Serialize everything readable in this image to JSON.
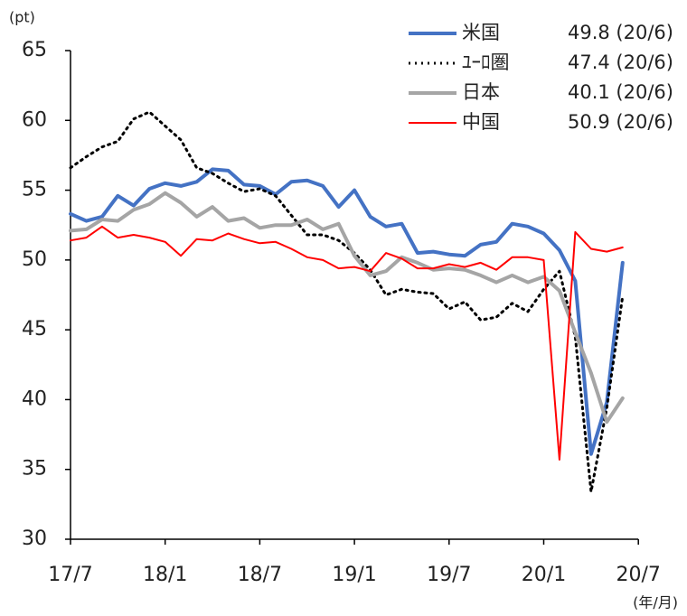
{
  "chart_data": {
    "type": "line",
    "y_label": "(pt)",
    "x_label": "(年/月)",
    "categories": [
      "17/7",
      null,
      null,
      null,
      null,
      null,
      "18/1",
      null,
      null,
      null,
      null,
      null,
      "18/7",
      null,
      null,
      null,
      null,
      null,
      "19/1",
      null,
      null,
      null,
      null,
      null,
      "19/7",
      null,
      null,
      null,
      null,
      null,
      "20/1",
      null,
      null,
      null,
      null,
      null,
      "20/7"
    ],
    "ylim": [
      30,
      65
    ],
    "yticks": [
      30,
      35,
      40,
      45,
      50,
      55,
      60,
      65
    ],
    "grid": false,
    "legend": "top-right",
    "series": [
      {
        "name": "米国",
        "legend_value": "49.8 (20/6)",
        "color": "#4472c4",
        "style": "solid",
        "values": [
          53.3,
          52.8,
          53.1,
          54.6,
          53.9,
          55.1,
          55.5,
          55.3,
          55.6,
          56.5,
          56.4,
          55.4,
          55.3,
          54.7,
          55.6,
          55.7,
          55.3,
          53.8,
          55.0,
          53.1,
          52.4,
          52.6,
          50.5,
          50.6,
          50.4,
          50.3,
          51.1,
          51.3,
          52.6,
          52.4,
          51.9,
          50.7,
          48.5,
          36.1,
          39.8,
          49.8,
          null
        ]
      },
      {
        "name": "ﾕｰﾛ圏",
        "legend_value": "47.4 (20/6)",
        "color": "#000000",
        "style": "dotted",
        "values": [
          56.6,
          57.4,
          58.1,
          58.5,
          60.1,
          60.6,
          59.6,
          58.6,
          56.6,
          56.2,
          55.5,
          54.9,
          55.1,
          54.6,
          53.2,
          51.8,
          51.8,
          51.4,
          50.5,
          49.3,
          47.5,
          47.9,
          47.7,
          47.6,
          46.5,
          47.0,
          45.7,
          45.9,
          46.9,
          46.3,
          47.9,
          49.2,
          44.5,
          33.4,
          39.4,
          47.4,
          null
        ]
      },
      {
        "name": "日本",
        "legend_value": "40.1 (20/6)",
        "color": "#a5a5a5",
        "style": "solid",
        "values": [
          52.1,
          52.2,
          52.9,
          52.8,
          53.6,
          54.0,
          54.8,
          54.1,
          53.1,
          53.8,
          52.8,
          53.0,
          52.3,
          52.5,
          52.5,
          52.9,
          52.2,
          52.6,
          50.3,
          48.9,
          49.2,
          50.2,
          49.8,
          49.3,
          49.4,
          49.3,
          48.9,
          48.4,
          48.9,
          48.4,
          48.8,
          47.8,
          44.8,
          41.9,
          38.4,
          40.1,
          null
        ]
      },
      {
        "name": "中国",
        "legend_value": "50.9 (20/6)",
        "color": "#ff0000",
        "style": "solid",
        "values": [
          51.4,
          51.6,
          52.4,
          51.6,
          51.8,
          51.6,
          51.3,
          50.3,
          51.5,
          51.4,
          51.9,
          51.5,
          51.2,
          51.3,
          50.8,
          50.2,
          50.0,
          49.4,
          49.5,
          49.2,
          50.5,
          50.1,
          49.4,
          49.4,
          49.7,
          49.5,
          49.8,
          49.3,
          50.2,
          50.2,
          50.0,
          35.7,
          52.0,
          50.8,
          50.6,
          50.9,
          null
        ]
      }
    ]
  }
}
